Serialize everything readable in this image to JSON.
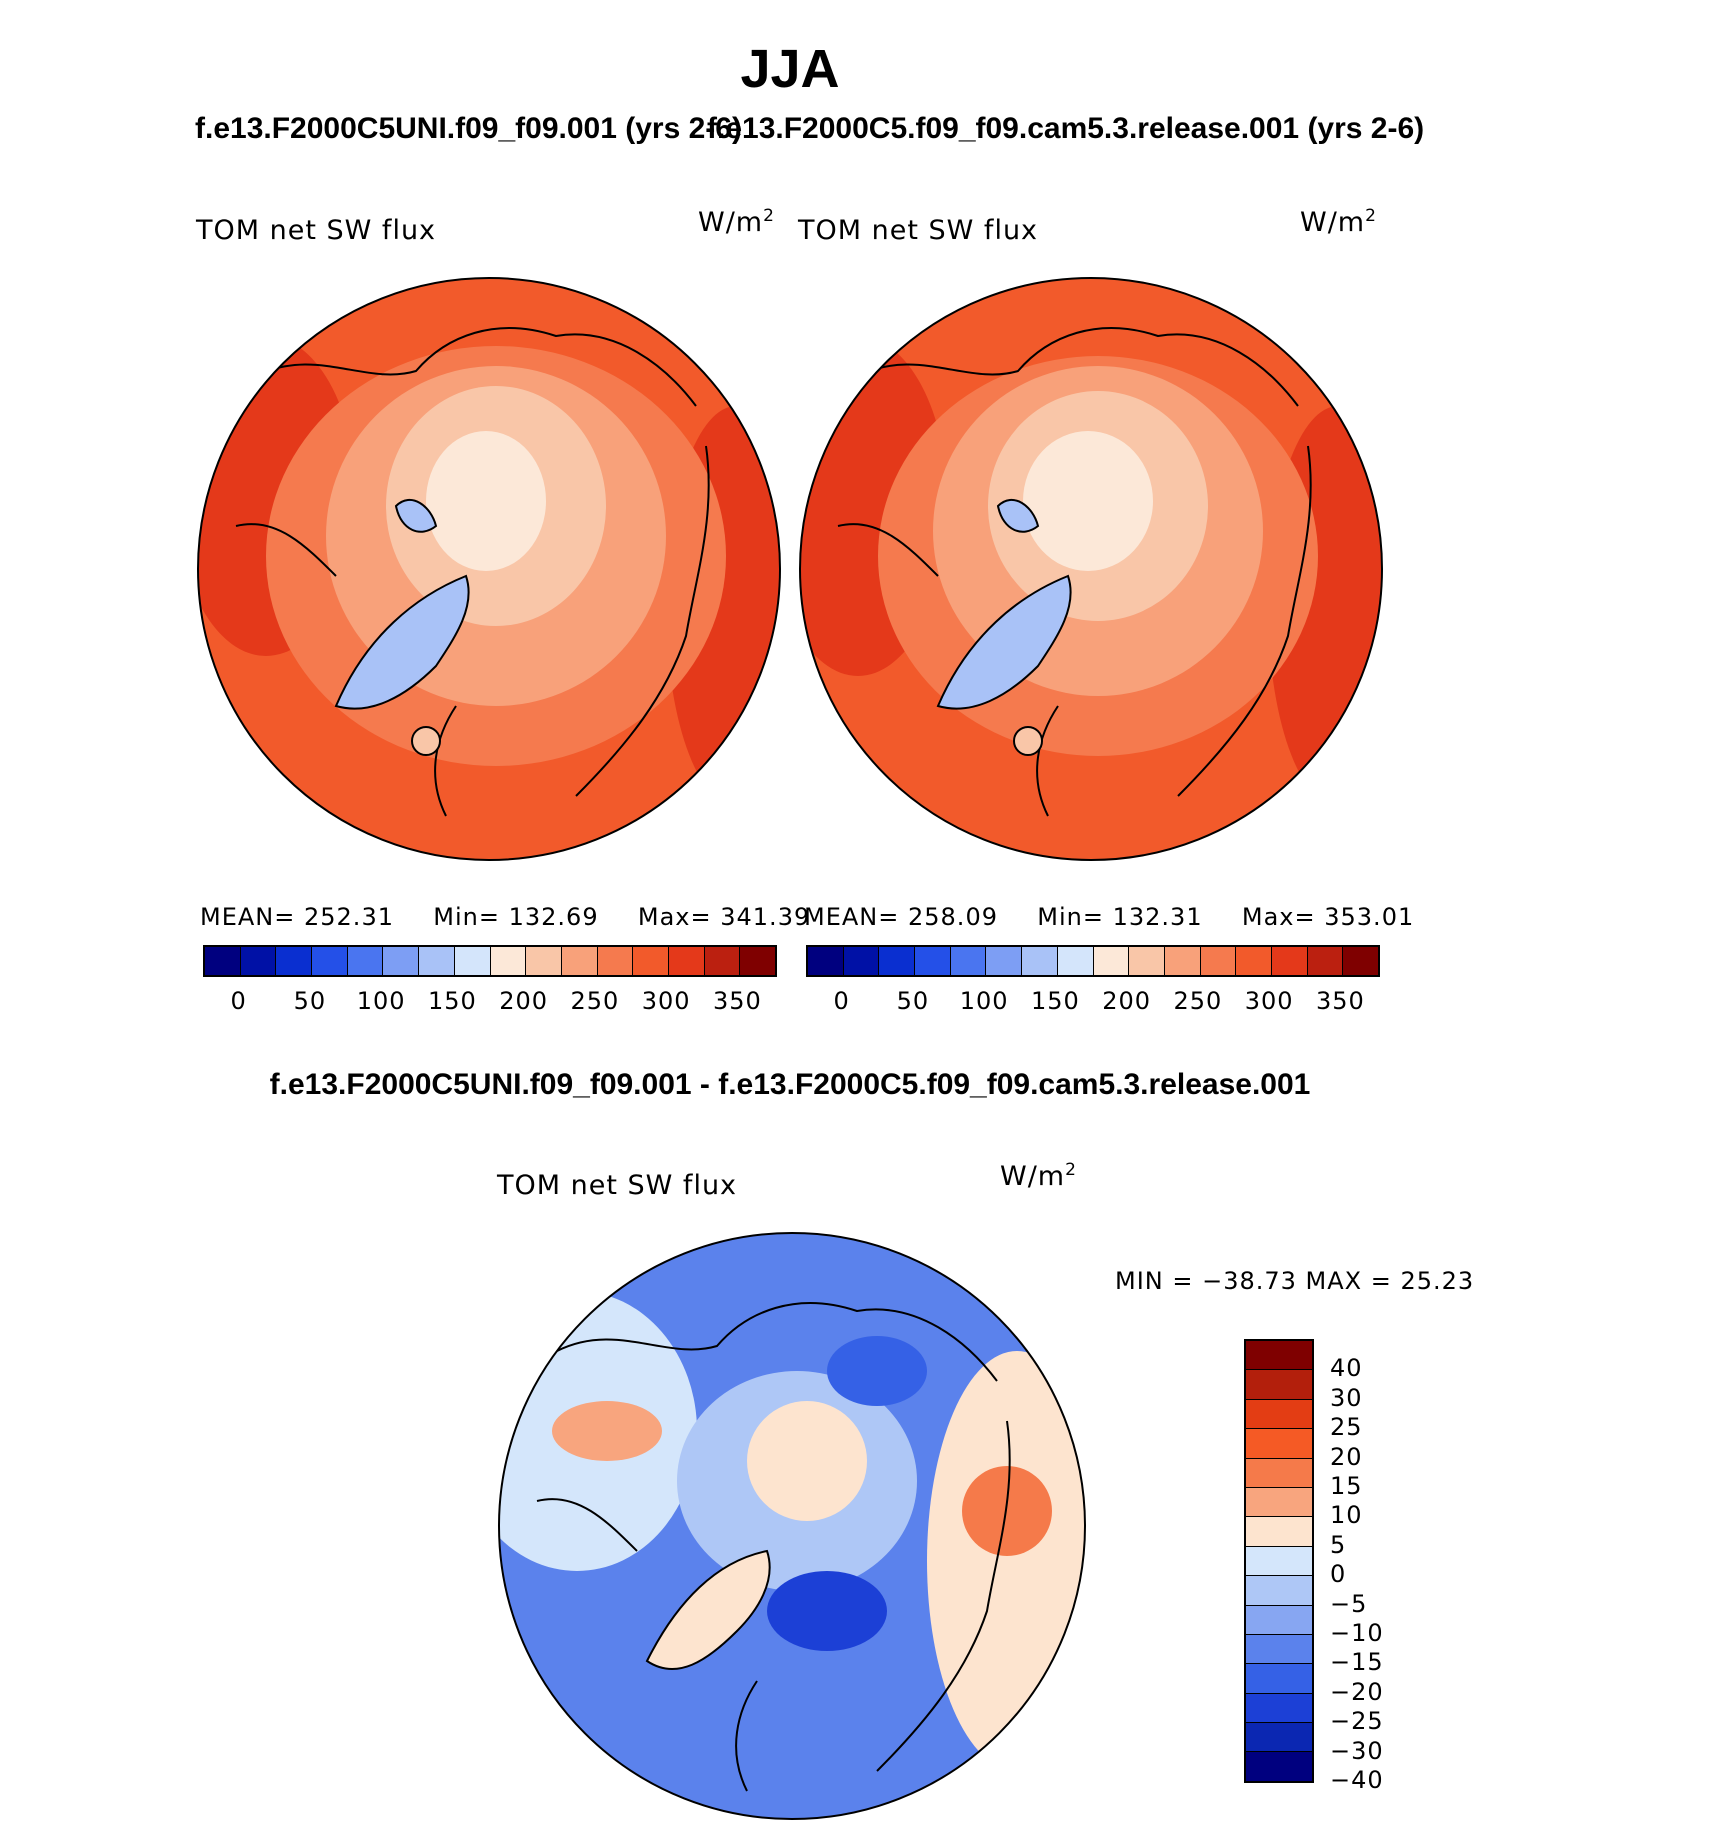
{
  "title": "JJA",
  "cases": {
    "left": "f.e13.F2000C5UNI.f09_f09.001 (yrs 2-6)",
    "right": "f.e13.F2000C5.f09_f09.cam5.3.release.001 (yrs 2-6)"
  },
  "diff_title": "f.e13.F2000C5UNI.f09_f09.001 - f.e13.F2000C5.f09_f09.cam5.3.release.001",
  "variable": "TOM net SW flux",
  "units": {
    "base": "W/m",
    "exp": "2"
  },
  "panels": [
    {
      "mean_label": "MEAN=",
      "mean": "252.31",
      "min_label": "Min=",
      "min": "132.69",
      "max_label": "Max=",
      "max": "341.39"
    },
    {
      "mean_label": "MEAN=",
      "mean": "258.09",
      "min_label": "Min=",
      "min": "132.31",
      "max_label": "Max=",
      "max": "353.01"
    }
  ],
  "diff_stats": "MIN = −38.73 MAX =   25.23",
  "colorbar_abs": {
    "colors": [
      "#00007f",
      "#0011a6",
      "#0a2fd0",
      "#2450e8",
      "#4a75f0",
      "#7d9ef4",
      "#a9c2f7",
      "#d4e5fb",
      "#fce8d8",
      "#f9c6a8",
      "#f8a17a",
      "#f57a4e",
      "#f25a2b",
      "#e4391a",
      "#bb2010",
      "#7f0000"
    ],
    "ticks": [
      "0",
      "50",
      "100",
      "150",
      "200",
      "250",
      "300",
      "350"
    ]
  },
  "colorbar_diff": {
    "colors": [
      "#7f0000",
      "#b31f0c",
      "#e33d14",
      "#f55a25",
      "#f57a4a",
      "#f8a57e",
      "#fde4cf",
      "#d4e6fb",
      "#aec7f6",
      "#87a6f2",
      "#5b82ec",
      "#3561e6",
      "#1c40d6",
      "#0b27b2",
      "#00007f"
    ],
    "ticks": [
      "40",
      "30",
      "25",
      "20",
      "15",
      "10",
      "5",
      "0",
      "−5",
      "−10",
      "−15",
      "−20",
      "−25",
      "−30",
      "−40"
    ]
  }
}
